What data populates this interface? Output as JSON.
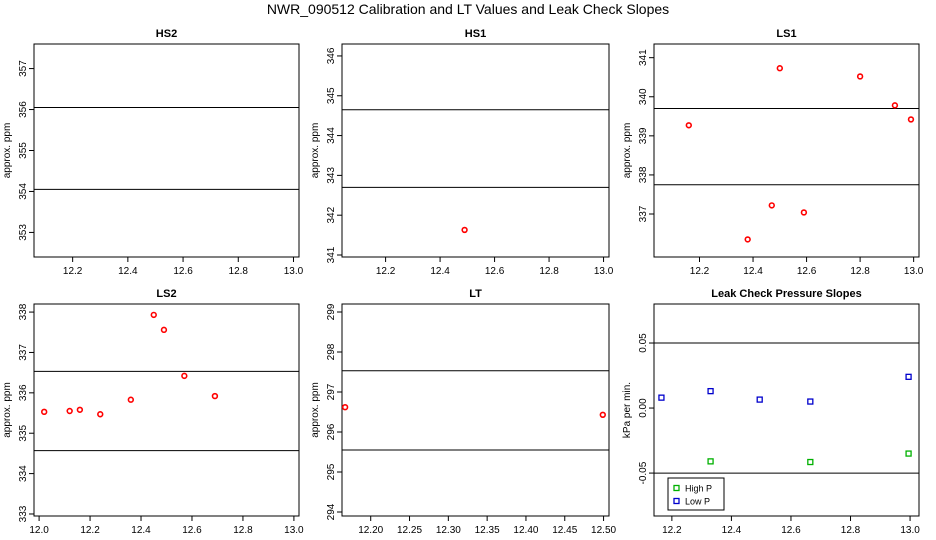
{
  "page_title": "NWR_090512  Calibration and LT Values and Leak Check Slopes",
  "chart_data": [
    {
      "type": "scatter",
      "title": "HS2",
      "ylabel": "approx. ppm",
      "xlabel": "",
      "xlim": [
        12.06,
        13.02
      ],
      "ylim": [
        352.4,
        357.6
      ],
      "xticks": [
        12.2,
        12.4,
        12.6,
        12.8,
        13.0
      ],
      "xtick_labels": [
        "12.2",
        "12.4",
        "12.6",
        "12.8",
        "13.0"
      ],
      "yticks": [
        353,
        354,
        355,
        356,
        357
      ],
      "ytick_labels": [
        "353",
        "354",
        "355",
        "356",
        "357"
      ],
      "hlines": [
        354.05,
        356.05
      ],
      "series": [
        {
          "color": "#ff0000",
          "x": [],
          "y": []
        }
      ],
      "legend": null
    },
    {
      "type": "scatter",
      "title": "HS1",
      "ylabel": "approx. ppm",
      "xlabel": "",
      "xlim": [
        12.04,
        13.02
      ],
      "ylim": [
        340.95,
        346.3
      ],
      "xticks": [
        12.2,
        12.4,
        12.6,
        12.8,
        13.0
      ],
      "xtick_labels": [
        "12.2",
        "12.4",
        "12.6",
        "12.8",
        "13.0"
      ],
      "yticks": [
        341,
        342,
        343,
        344,
        345,
        346
      ],
      "ytick_labels": [
        "341",
        "342",
        "343",
        "344",
        "345",
        "346"
      ],
      "hlines": [
        342.7,
        344.65
      ],
      "series": [
        {
          "color": "#ff0000",
          "x": [
            12.49
          ],
          "y": [
            341.63
          ]
        }
      ],
      "legend": null
    },
    {
      "type": "scatter",
      "title": "LS1",
      "ylabel": "approx. ppm",
      "xlabel": "",
      "xlim": [
        12.03,
        13.02
      ],
      "ylim": [
        335.9,
        341.35
      ],
      "xticks": [
        12.2,
        12.4,
        12.6,
        12.8,
        13.0
      ],
      "xtick_labels": [
        "12.2",
        "12.4",
        "12.6",
        "12.8",
        "13.0"
      ],
      "yticks": [
        337,
        338,
        339,
        340,
        341
      ],
      "ytick_labels": [
        "337",
        "338",
        "339",
        "340",
        "341"
      ],
      "hlines": [
        337.75,
        339.7
      ],
      "series": [
        {
          "color": "#ff0000",
          "x": [
            12.16,
            12.38,
            12.47,
            12.5,
            12.59,
            12.8,
            12.93,
            12.99
          ],
          "y": [
            339.27,
            336.35,
            337.22,
            340.73,
            337.04,
            340.52,
            339.78,
            339.42
          ]
        }
      ],
      "legend": null
    },
    {
      "type": "scatter",
      "title": "LS2",
      "ylabel": "approx. ppm",
      "xlabel": "",
      "xlim": [
        11.98,
        13.02
      ],
      "ylim": [
        332.95,
        338.2
      ],
      "xticks": [
        12.0,
        12.2,
        12.4,
        12.6,
        12.8,
        13.0
      ],
      "xtick_labels": [
        "12.0",
        "12.2",
        "12.4",
        "12.6",
        "12.8",
        "13.0"
      ],
      "yticks": [
        333,
        334,
        335,
        336,
        337,
        338
      ],
      "ytick_labels": [
        "333",
        "334",
        "335",
        "336",
        "337",
        "338"
      ],
      "hlines": [
        334.57,
        336.53
      ],
      "series": [
        {
          "color": "#ff0000",
          "x": [
            12.02,
            12.12,
            12.16,
            12.24,
            12.36,
            12.45,
            12.49,
            12.57,
            12.69
          ],
          "y": [
            335.53,
            335.55,
            335.58,
            335.47,
            335.83,
            337.93,
            337.56,
            336.42,
            335.92
          ]
        }
      ],
      "legend": null
    },
    {
      "type": "scatter",
      "title": "LT",
      "ylabel": "approx. ppm",
      "xlabel": "",
      "xlim": [
        12.163,
        12.507
      ],
      "ylim": [
        293.9,
        299.2
      ],
      "xticks": [
        12.2,
        12.25,
        12.3,
        12.35,
        12.4,
        12.45,
        12.5
      ],
      "xtick_labels": [
        "12.20",
        "12.25",
        "12.30",
        "12.35",
        "12.40",
        "12.45",
        "12.50"
      ],
      "yticks": [
        294,
        295,
        296,
        297,
        298,
        299
      ],
      "ytick_labels": [
        "294",
        "295",
        "296",
        "297",
        "298",
        "299"
      ],
      "hlines": [
        295.55,
        297.53
      ],
      "series": [
        {
          "color": "#ff0000",
          "x": [
            12.167,
            12.499
          ],
          "y": [
            296.62,
            296.43
          ]
        }
      ],
      "legend": null
    },
    {
      "type": "scatter",
      "title": "Leak Check Pressure Slopes",
      "ylabel": "kPa per min.",
      "xlabel": "",
      "xlim": [
        12.14,
        13.03
      ],
      "ylim": [
        -0.083,
        0.08
      ],
      "xticks": [
        12.2,
        12.4,
        12.6,
        12.8,
        13.0
      ],
      "xtick_labels": [
        "12.2",
        "12.4",
        "12.6",
        "12.8",
        "13.0"
      ],
      "yticks": [
        -0.05,
        0.0,
        0.05
      ],
      "ytick_labels": [
        "-0.05",
        "0.00",
        "0.05"
      ],
      "hlines": [
        -0.05,
        0.05
      ],
      "series": [
        {
          "name": "High P",
          "color": "#00b000",
          "x": [
            12.33,
            12.665,
            12.995
          ],
          "y": [
            -0.041,
            -0.0415,
            -0.035
          ]
        },
        {
          "name": "Low P",
          "color": "#0000cc",
          "x": [
            12.165,
            12.33,
            12.495,
            12.665,
            12.995
          ],
          "y": [
            0.008,
            0.013,
            0.0065,
            0.005,
            0.024
          ]
        }
      ],
      "legend": "bottom-left"
    }
  ]
}
